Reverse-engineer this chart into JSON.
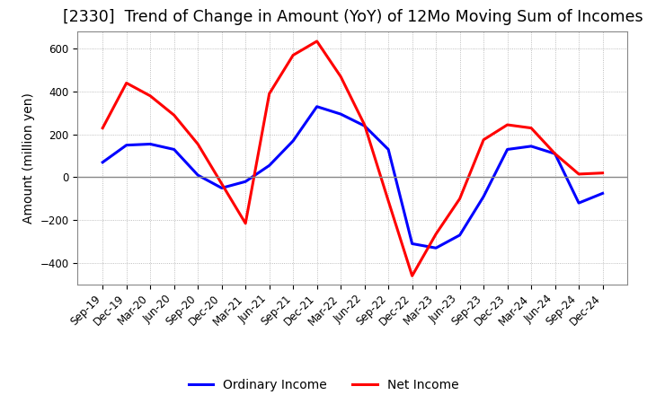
{
  "title": "[2330]  Trend of Change in Amount (YoY) of 12Mo Moving Sum of Incomes",
  "ylabel": "Amount (million yen)",
  "ylim": [
    -500,
    680
  ],
  "yticks": [
    -400,
    -200,
    0,
    200,
    400,
    600
  ],
  "x_labels": [
    "Sep-19",
    "Dec-19",
    "Mar-20",
    "Jun-20",
    "Sep-20",
    "Dec-20",
    "Mar-21",
    "Jun-21",
    "Sep-21",
    "Dec-21",
    "Mar-22",
    "Jun-22",
    "Sep-22",
    "Dec-22",
    "Mar-23",
    "Jun-23",
    "Sep-23",
    "Dec-23",
    "Mar-24",
    "Jun-24",
    "Sep-24",
    "Dec-24"
  ],
  "ordinary_income": [
    70,
    150,
    155,
    130,
    10,
    -50,
    -20,
    55,
    170,
    330,
    295,
    240,
    130,
    -310,
    -330,
    -270,
    -90,
    130,
    145,
    110,
    -120,
    -75
  ],
  "net_income": [
    230,
    440,
    380,
    290,
    155,
    -30,
    -215,
    390,
    570,
    635,
    470,
    245,
    -110,
    -460,
    -265,
    -100,
    175,
    245,
    230,
    110,
    15,
    20
  ],
  "ordinary_color": "#0000ff",
  "net_color": "#ff0000",
  "line_width": 2.2,
  "grid_color": "#aaaaaa",
  "zero_line_color": "#888888",
  "background_color": "#ffffff",
  "title_fontsize": 12.5,
  "label_fontsize": 10,
  "tick_fontsize": 8.5,
  "legend_fontsize": 10
}
